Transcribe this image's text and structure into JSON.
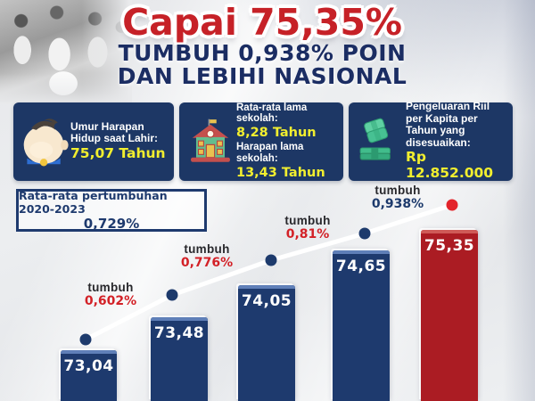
{
  "header": {
    "title_line1": "Capai 75,35%",
    "title_line2": "TUMBUH 0,938% POIN",
    "title_line3": "DAN LEBIHI NASIONAL"
  },
  "cards": [
    {
      "id": "life-expectancy",
      "icon": "baby-face-icon",
      "lines": [
        {
          "label": "Umur Harapan Hidup saat Lahir:",
          "value": "75,07 Tahun"
        }
      ]
    },
    {
      "id": "schooling",
      "icon": "school-building-icon",
      "lines": [
        {
          "label": "Rata-rata lama sekolah:",
          "value": "8,28 Tahun"
        },
        {
          "label": "Harapan lama sekolah:",
          "value": "13,43 Tahun"
        }
      ]
    },
    {
      "id": "expenditure",
      "icon": "money-stack-icon",
      "lines": [
        {
          "label": "Pengeluaran Riil per Kapita per Tahun yang disesuaikan:",
          "value": "Rp 12.852.000"
        }
      ]
    }
  ],
  "growth_box": {
    "line1": "Rata-rata pertumbuhan 2020-2023",
    "line2": "0,729%"
  },
  "chart_data": {
    "type": "bar",
    "values": [
      73.04,
      73.48,
      74.05,
      74.65,
      75.35
    ],
    "bar_labels": [
      "73,04",
      "73,48",
      "74,05",
      "74,65",
      "75,35"
    ],
    "bar_colors": [
      "#1e3a6e",
      "#1e3a6e",
      "#1e3a6e",
      "#1e3a6e",
      "#ab1c23"
    ],
    "bar_cap_colors": [
      "#5f7fb8",
      "#5f7fb8",
      "#5f7fb8",
      "#5f7fb8",
      "#cf5a57"
    ],
    "overlay": "line-with-dots",
    "line_color": "#ffffff",
    "dot_colors": [
      "#1d3a6c",
      "#1d3a6c",
      "#1d3a6c",
      "#1d3a6c",
      "#e3242b"
    ],
    "growth_annotations": [
      {
        "label": "tumbuh",
        "value": "0,602%",
        "value_color": "#d32127"
      },
      {
        "label": "tumbuh",
        "value": "0,776%",
        "value_color": "#d32127"
      },
      {
        "label": "tumbuh",
        "value": "0,81%",
        "value_color": "#d32127"
      },
      {
        "label": "tumbuh",
        "value": "0,938%",
        "value_color": "#1d3a6c"
      }
    ],
    "axes_visible": false,
    "value_labels_inside_bars": true
  },
  "colors": {
    "headline_red": "#c62127",
    "headline_navy": "#1b2d63",
    "card_background": "#1d3765",
    "card_value_yellow": "#f1ee2f",
    "background_gray": "#e8e9eb"
  }
}
